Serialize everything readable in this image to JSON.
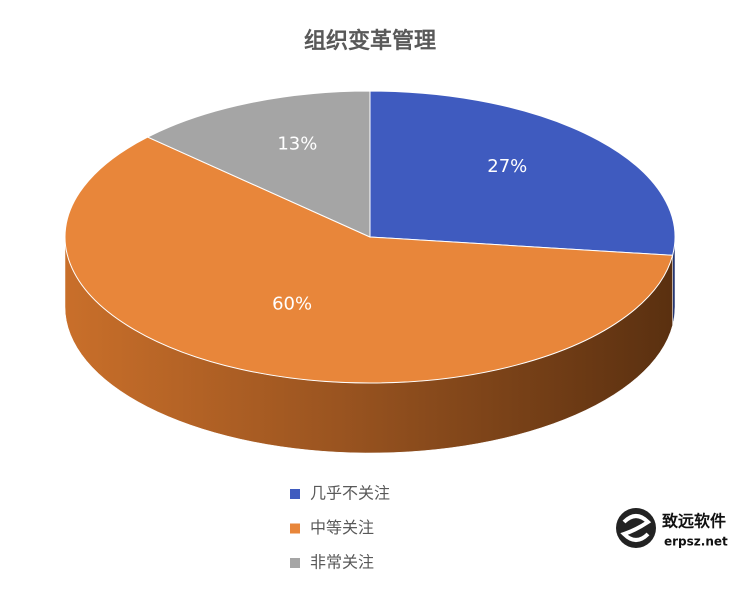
{
  "chart_data": {
    "type": "pie3d",
    "title": "组织变革管理",
    "categories": [
      "几乎不关注",
      "中等关注",
      "非常关注"
    ],
    "values": [
      27,
      60,
      13
    ],
    "value_labels": [
      "27%",
      "60%",
      "13%"
    ],
    "colors": [
      "#3f5bbf",
      "#e8863a",
      "#a5a5a5"
    ],
    "legend": "bottom"
  },
  "watermark": {
    "name": "致远软件",
    "url": "erpsz.net"
  }
}
